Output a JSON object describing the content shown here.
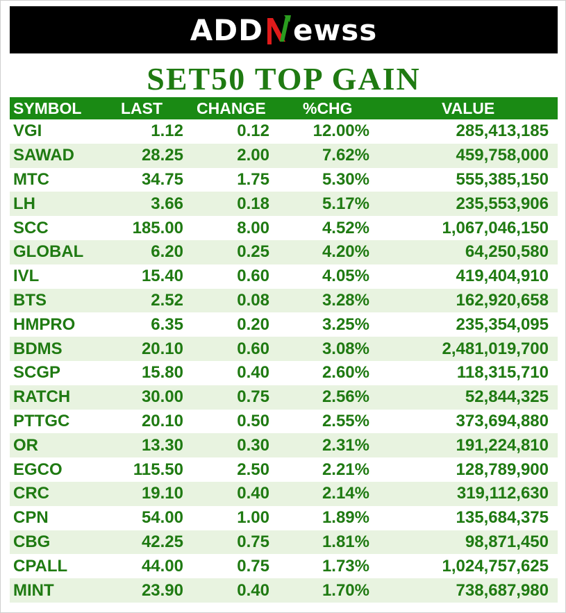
{
  "header": {
    "logo_left": "ADD",
    "logo_right": "ewss",
    "logo_mark_icon": "n-arrow-logo-icon",
    "brand_colors": {
      "banner": "#000000",
      "mark_red": "#e01b1b",
      "mark_green": "#2a9d1f"
    }
  },
  "title": "SET50 TOP GAIN",
  "accent_color": "#1f7a12",
  "table": {
    "columns": [
      "SYMBOL",
      "LAST",
      "CHANGE",
      "%CHG",
      "VALUE"
    ],
    "rows": [
      [
        "VGI",
        "1.12",
        "0.12",
        "12.00%",
        "285,413,185"
      ],
      [
        "SAWAD",
        "28.25",
        "2.00",
        "7.62%",
        "459,758,000"
      ],
      [
        "MTC",
        "34.75",
        "1.75",
        "5.30%",
        "555,385,150"
      ],
      [
        "LH",
        "3.66",
        "0.18",
        "5.17%",
        "235,553,906"
      ],
      [
        "SCC",
        "185.00",
        "8.00",
        "4.52%",
        "1,067,046,150"
      ],
      [
        "GLOBAL",
        "6.20",
        "0.25",
        "4.20%",
        "64,250,580"
      ],
      [
        "IVL",
        "15.40",
        "0.60",
        "4.05%",
        "419,404,910"
      ],
      [
        "BTS",
        "2.52",
        "0.08",
        "3.28%",
        "162,920,658"
      ],
      [
        "HMPRO",
        "6.35",
        "0.20",
        "3.25%",
        "235,354,095"
      ],
      [
        "BDMS",
        "20.10",
        "0.60",
        "3.08%",
        "2,481,019,700"
      ],
      [
        "SCGP",
        "15.80",
        "0.40",
        "2.60%",
        "118,315,710"
      ],
      [
        "RATCH",
        "30.00",
        "0.75",
        "2.56%",
        "52,844,325"
      ],
      [
        "PTTGC",
        "20.10",
        "0.50",
        "2.55%",
        "373,694,880"
      ],
      [
        "OR",
        "13.30",
        "0.30",
        "2.31%",
        "191,224,810"
      ],
      [
        "EGCO",
        "115.50",
        "2.50",
        "2.21%",
        "128,789,900"
      ],
      [
        "CRC",
        "19.10",
        "0.40",
        "2.14%",
        "319,112,630"
      ],
      [
        "CPN",
        "54.00",
        "1.00",
        "1.89%",
        "135,684,375"
      ],
      [
        "CBG",
        "42.25",
        "0.75",
        "1.81%",
        "98,871,450"
      ],
      [
        "CPALL",
        "44.00",
        "0.75",
        "1.73%",
        "1,024,757,625"
      ],
      [
        "MINT",
        "23.90",
        "0.40",
        "1.70%",
        "738,687,980"
      ]
    ]
  }
}
